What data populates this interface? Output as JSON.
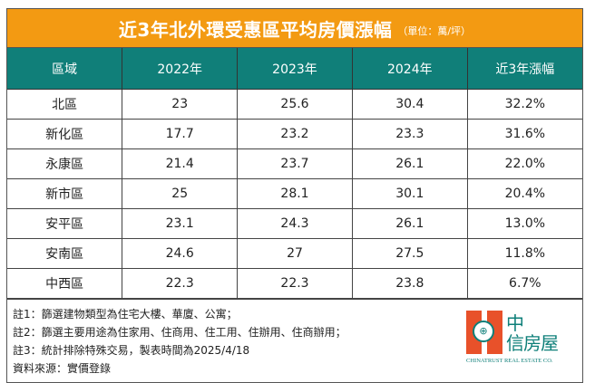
{
  "title": "近3年北外環受惠區平均房價漲幅",
  "unit": "（單位：萬/坪）",
  "colors": {
    "title_bg": "#f39a12",
    "header_bg": "#107f79",
    "logo_red": "#e8512a"
  },
  "chart_data": {
    "type": "table",
    "title": "近3年北外環受惠區平均房價漲幅",
    "columns": [
      "區域",
      "2022年",
      "2023年",
      "2024年",
      "近3年漲幅"
    ],
    "rows": [
      [
        "北區",
        "23",
        "25.6",
        "30.4",
        "32.2%"
      ],
      [
        "新化區",
        "17.7",
        "23.2",
        "23.3",
        "31.6%"
      ],
      [
        "永康區",
        "21.4",
        "23.7",
        "26.1",
        "22.0%"
      ],
      [
        "新市區",
        "25",
        "28.1",
        "30.1",
        "20.4%"
      ],
      [
        "安平區",
        "23.1",
        "24.3",
        "26.1",
        "13.0%"
      ],
      [
        "安南區",
        "24.6",
        "27",
        "27.5",
        "11.8%"
      ],
      [
        "中西區",
        "22.3",
        "22.3",
        "23.8",
        "6.7%"
      ]
    ]
  },
  "notes": [
    "註1：篩選建物類型為住宅大樓、華廈、公寓；",
    "註2：篩選主要用途為住家用、住商用、住工用、住辦用、住商辦用；",
    "註3：統計排除特殊交易，製表時間為2025/4/18",
    "資料來源：實價登錄"
  ],
  "logo": {
    "line1": "中",
    "line2": "信房屋",
    "en": "CHINATRUST REAL ESTATE CO."
  }
}
